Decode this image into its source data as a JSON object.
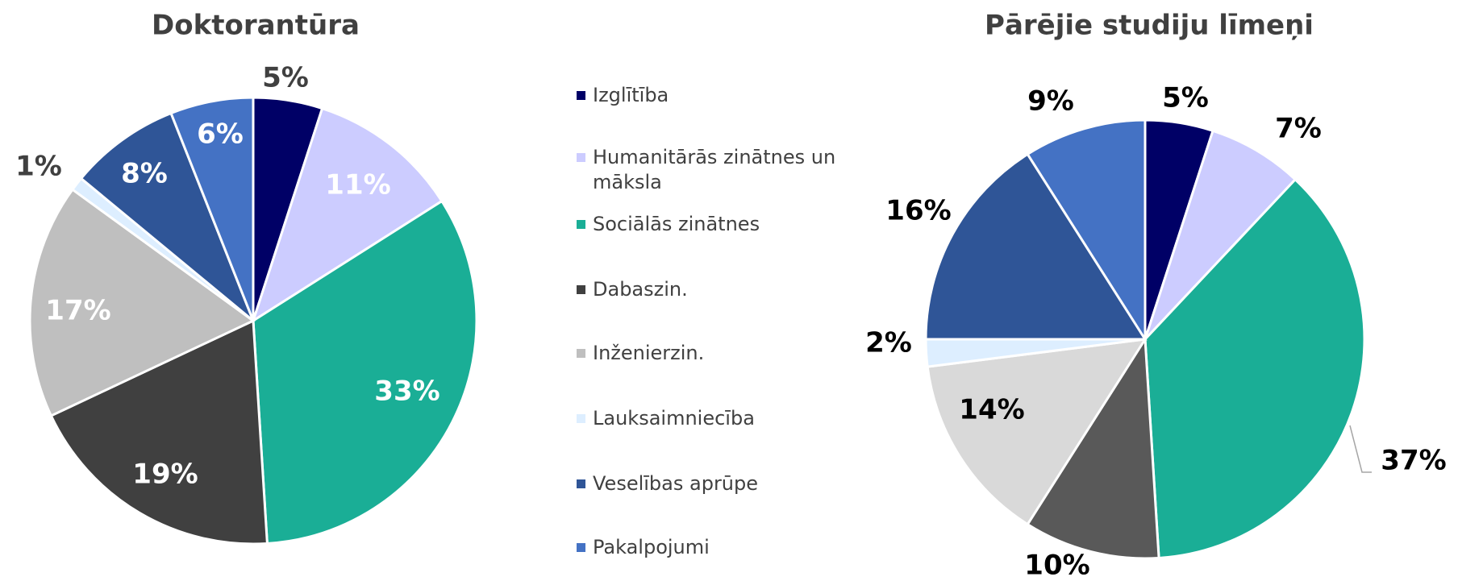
{
  "chart_data": [
    {
      "type": "pie",
      "title": "Doktorantūra",
      "categories": [
        "Izglītība",
        "Humanitārās zinātnes un māksla",
        "Sociālās zinātnes",
        "Dabaszin.",
        "Inženierzin.",
        "Lauksaimniecība",
        "Veselības aprūpe",
        "Pakalpojumi"
      ],
      "values": [
        5,
        11,
        33,
        19,
        17,
        1,
        8,
        6
      ],
      "value_labels": [
        "5%",
        "11%",
        "33%",
        "19%",
        "17%",
        "1%",
        "8%",
        "6%"
      ],
      "colors": [
        "#000066",
        "#ccccff",
        "#1aae96",
        "#404040",
        "#bfbfbf",
        "#ddeeff",
        "#2f5597",
        "#4472c4"
      ],
      "legend": "center"
    },
    {
      "type": "pie",
      "title": "Pārējie studiju līmeņi",
      "categories": [
        "Izglītība",
        "Humanitārās zinātnes un māksla",
        "Sociālās zinātnes",
        "Dabaszin.",
        "Inženierzin.",
        "Lauksaimniecība",
        "Veselības aprūpe",
        "Pakalpojumi"
      ],
      "values": [
        5,
        7,
        37,
        10,
        14,
        2,
        16,
        9
      ],
      "value_labels": [
        "5%",
        "7%",
        "37%",
        "10%",
        "14%",
        "2%",
        "16%",
        "9%"
      ],
      "colors": [
        "#000066",
        "#ccccff",
        "#1aae96",
        "#595959",
        "#d9d9d9",
        "#ddeeff",
        "#2f5597",
        "#4472c4"
      ]
    }
  ]
}
